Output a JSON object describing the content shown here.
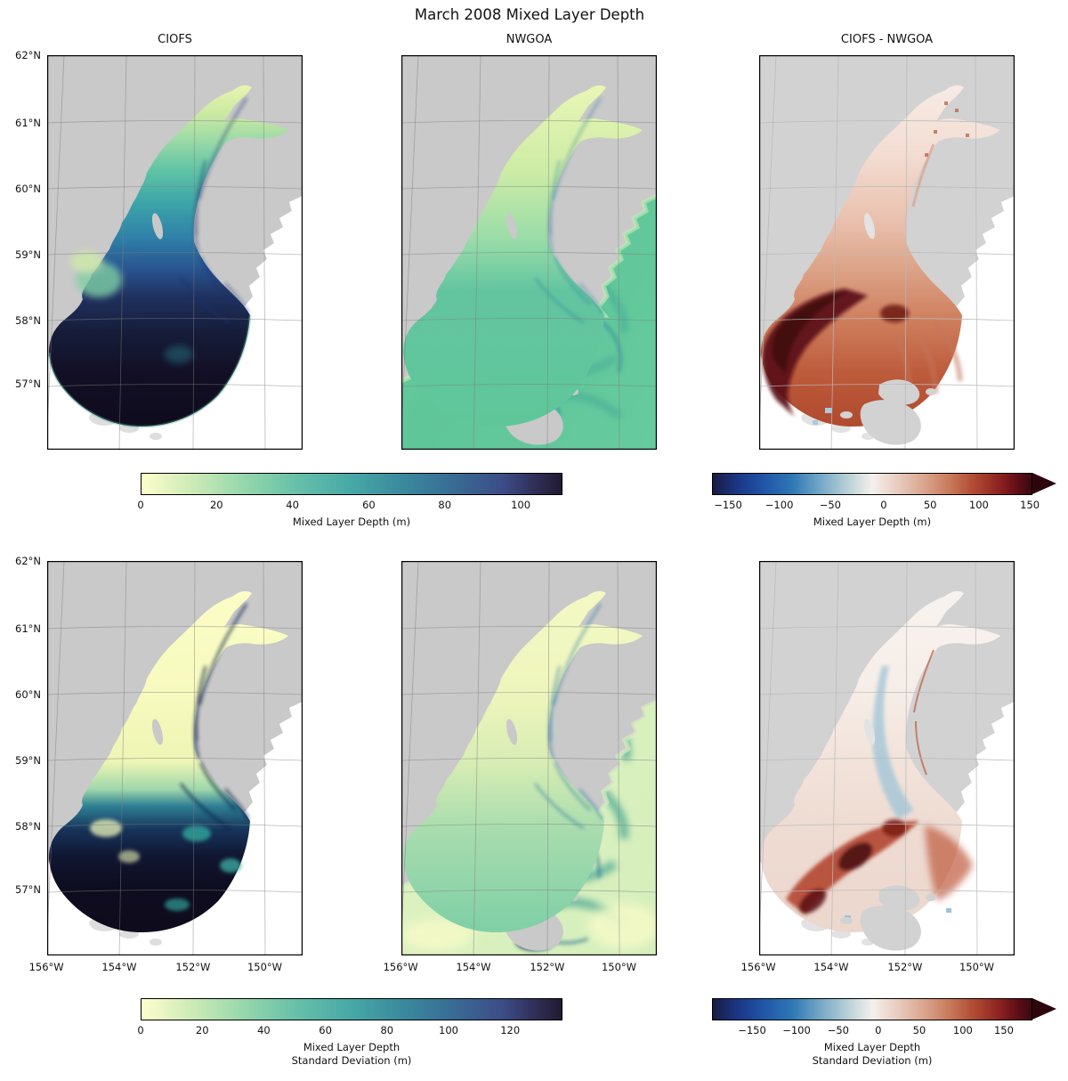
{
  "figure": {
    "title": "March 2008 Mixed Layer Depth"
  },
  "panels": {
    "titles": [
      "CIOFS",
      "NWGOA",
      "CIOFS - NWGOA"
    ]
  },
  "axes": {
    "lat": {
      "labels": [
        "62°N",
        "61°N",
        "60°N",
        "59°N",
        "58°N",
        "57°N"
      ],
      "pos_pct": [
        0,
        17.2,
        33.9,
        50.6,
        67.3,
        83.3
      ]
    },
    "lon": {
      "labels": [
        "156°W",
        "154°W",
        "152°W",
        "150°W"
      ],
      "pos_pct": [
        -0.3,
        28.2,
        57.1,
        85.2
      ]
    }
  },
  "colormaps": {
    "deep": [
      [
        0,
        "#FDFECC"
      ],
      [
        0.13,
        "#C9E9B5"
      ],
      [
        0.25,
        "#93D6AB"
      ],
      [
        0.37,
        "#66C0A9"
      ],
      [
        0.5,
        "#47A8A6"
      ],
      [
        0.62,
        "#3A8A9E"
      ],
      [
        0.74,
        "#386C94"
      ],
      [
        0.86,
        "#3D4C87"
      ],
      [
        0.94,
        "#2F2E56"
      ],
      [
        1,
        "#221A31"
      ]
    ],
    "balance": [
      [
        0,
        "#181C43"
      ],
      [
        0.08,
        "#1C3787"
      ],
      [
        0.16,
        "#2055A7"
      ],
      [
        0.25,
        "#2E78B5"
      ],
      [
        0.33,
        "#6FA4C5"
      ],
      [
        0.42,
        "#B5CFD5"
      ],
      [
        0.5,
        "#F5F0ED"
      ],
      [
        0.58,
        "#E8CCBF"
      ],
      [
        0.66,
        "#DAA690"
      ],
      [
        0.74,
        "#C97B5C"
      ],
      [
        0.82,
        "#B14A33"
      ],
      [
        0.9,
        "#8C2220"
      ],
      [
        0.96,
        "#5C0D15"
      ],
      [
        1,
        "#3B0912"
      ]
    ]
  },
  "colors": {
    "land": "#c9c9c9",
    "land_diff": "#d2d2d2",
    "land_faded": "#dedede",
    "background": "#ffffff",
    "grid": "#7d7d7d",
    "grid_diff": "#b9b9b9",
    "frame": "#000000",
    "balance_arrow": "#2D060D"
  },
  "colorbars": [
    {
      "colormap": "deep",
      "label": "Mixed Layer Depth (m)",
      "label2": "",
      "extend": "none",
      "ticks": [
        {
          "label": "0",
          "p": 0
        },
        {
          "label": "20",
          "p": 18.0
        },
        {
          "label": "40",
          "p": 36.0
        },
        {
          "label": "60",
          "p": 54.1
        },
        {
          "label": "80",
          "p": 72.1
        },
        {
          "label": "100",
          "p": 90.1
        }
      ]
    },
    {
      "colormap": "balance",
      "label": "Mixed Layer Depth (m)",
      "label2": "",
      "extend": "max",
      "ticks": [
        {
          "label": "−150",
          "p": 5.0
        },
        {
          "label": "−100",
          "p": 21.0
        },
        {
          "label": "−50",
          "p": 36.9
        },
        {
          "label": "0",
          "p": 53.6
        },
        {
          "label": "50",
          "p": 68.1
        },
        {
          "label": "100",
          "p": 83.3
        },
        {
          "label": "150",
          "p": 99.2
        }
      ]
    },
    {
      "colormap": "deep",
      "label": "Mixed Layer Depth",
      "label2": "Standard Deviation (m)",
      "extend": "none",
      "ticks": [
        {
          "label": "0",
          "p": 0
        },
        {
          "label": "20",
          "p": 14.6
        },
        {
          "label": "40",
          "p": 29.2
        },
        {
          "label": "60",
          "p": 43.8
        },
        {
          "label": "80",
          "p": 58.4
        },
        {
          "label": "100",
          "p": 73.0
        },
        {
          "label": "120",
          "p": 87.6
        }
      ]
    },
    {
      "colormap": "balance",
      "label": "Mixed Layer Depth",
      "label2": "Standard Deviation (m)",
      "extend": "max",
      "ticks": [
        {
          "label": "−150",
          "p": 12.5
        },
        {
          "label": "−100",
          "p": 26.4
        },
        {
          "label": "−50",
          "p": 39.4
        },
        {
          "label": "0",
          "p": 51.9
        },
        {
          "label": "50",
          "p": 64.7
        },
        {
          "label": "100",
          "p": 78.3
        },
        {
          "label": "150",
          "p": 91.1
        }
      ]
    }
  ],
  "chart_data": {
    "type": "heatmap",
    "title": "March 2008 Mixed Layer Depth",
    "layout": "2 rows × 3 columns of geographic map panels (Cook Inlet / Gulf of Alaska region)",
    "columns": [
      "CIOFS",
      "NWGOA",
      "CIOFS - NWGOA"
    ],
    "row_variables": [
      "Mixed Layer Depth (m)",
      "Mixed Layer Depth Standard Deviation (m)"
    ],
    "lat_ticks": [
      "62°N",
      "61°N",
      "60°N",
      "59°N",
      "58°N",
      "57°N"
    ],
    "lon_ticks": [
      "156°W",
      "154°W",
      "152°W",
      "150°W"
    ],
    "colorbars": [
      {
        "row": 1,
        "applies_to": [
          "CIOFS",
          "NWGOA"
        ],
        "label": "Mixed Layer Depth (m)",
        "ticks": [
          0,
          20,
          40,
          60,
          80,
          100
        ],
        "approx_range": [
          0,
          110
        ],
        "colormap": "deep",
        "extend": "none"
      },
      {
        "row": 1,
        "applies_to": [
          "CIOFS - NWGOA"
        ],
        "label": "Mixed Layer Depth (m)",
        "ticks": [
          -150,
          -100,
          -50,
          0,
          50,
          100,
          150
        ],
        "colormap": "balance",
        "extend": "max"
      },
      {
        "row": 2,
        "applies_to": [
          "CIOFS",
          "NWGOA"
        ],
        "label": "Mixed Layer Depth Standard Deviation (m)",
        "ticks": [
          0,
          20,
          40,
          60,
          80,
          100,
          120
        ],
        "approx_range": [
          0,
          137
        ],
        "colormap": "deep",
        "extend": "none"
      },
      {
        "row": 2,
        "applies_to": [
          "CIOFS - NWGOA"
        ],
        "label": "Mixed Layer Depth Standard Deviation (m)",
        "ticks": [
          -150,
          -100,
          -50,
          0,
          50,
          100,
          150
        ],
        "colormap": "balance",
        "extend": "max"
      }
    ],
    "qualitative_patterns": {
      "ciofs_mld": "Shallow (0–20 m, pale green) in upper Cook Inlet arms, deepening (60–110 m, dark navy) toward inlet mouth and Shelikof Strait fan-shaped domain edge",
      "nwgoa_mld": "Fairly uniform ~20–35 m (green) across whole Gulf of Alaska domain with lighter coastal values and darker eddies",
      "diff_mld": "CIOFS deeper than NWGOA (positive/red) almost everywhere in overlap, darkest (>150 m) band along Shelikof Strait",
      "ciofs_std": "Near-zero (pale yellow) in upper inlet, very large (>120 m, black) through lower inlet and Shelikof Strait",
      "nwgoa_std": "Low (0–40 m) with filamented teal/navy eddy structures",
      "diff_std": "CIOFS std larger (red/maroon) in lower inlet and Shelikof band; slightly smaller (light blue) in mid-inlet channel"
    }
  }
}
